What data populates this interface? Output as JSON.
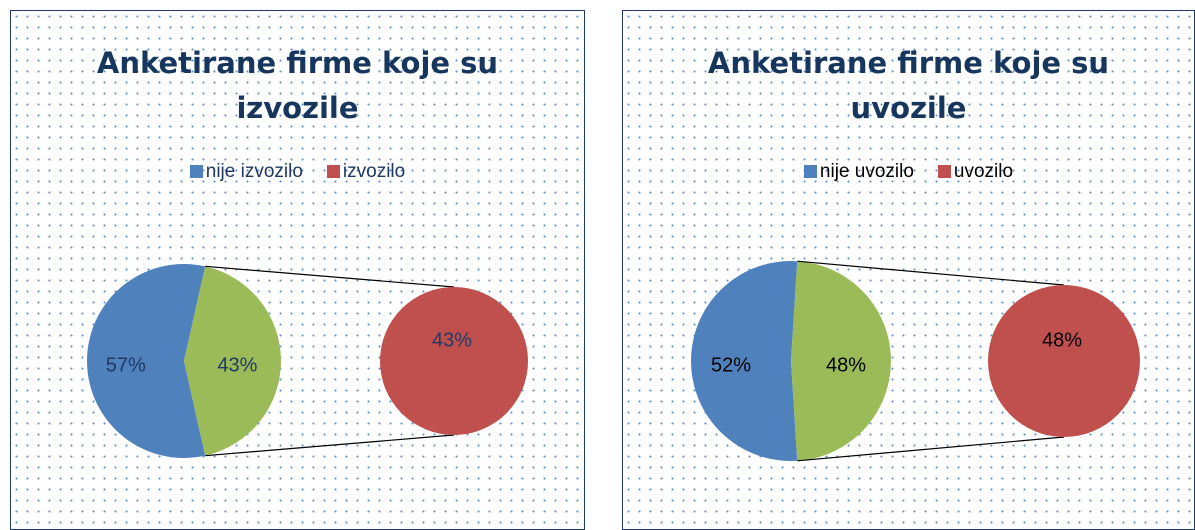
{
  "chart_data": [
    {
      "type": "pie-of-pie",
      "title": "Anketirane firme koje su izvozile",
      "categories": [
        "nije izvozilo",
        "izvozilo"
      ],
      "values": [
        57,
        43
      ],
      "value_labels": [
        "57%",
        "43%"
      ],
      "colors": [
        "#4f81bd",
        "#c0504d"
      ],
      "other_color": "#9bbb59",
      "label_color": "#1f3864",
      "legend": "top"
    },
    {
      "type": "pie-of-pie",
      "title": "Anketirane firme koje su uvozile",
      "categories": [
        "nije uvozilo",
        "uvozilo"
      ],
      "values": [
        52,
        48
      ],
      "value_labels": [
        "52%",
        "48%"
      ],
      "colors": [
        "#4f81bd",
        "#c0504d"
      ],
      "other_color": "#9bbb59",
      "label_color": "#000000",
      "legend": "top"
    }
  ]
}
